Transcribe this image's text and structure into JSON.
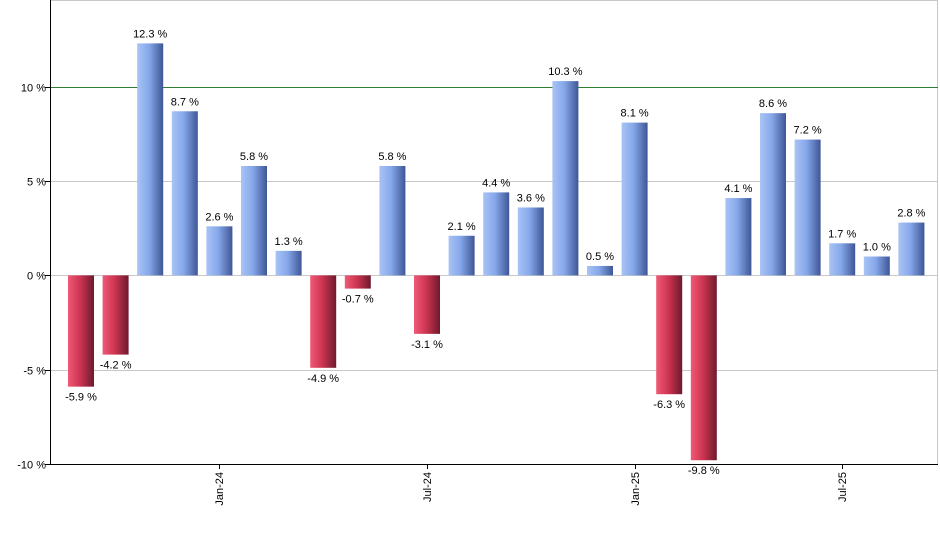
{
  "chart_data": {
    "type": "bar",
    "title": "",
    "xlabel": "",
    "ylabel": "",
    "ylim": [
      -10,
      14.6
    ],
    "yticks": [
      -10,
      -5,
      0,
      5,
      10
    ],
    "ytick_labels": [
      "-10 %",
      "-5 %",
      "0 %",
      "5 %",
      "10 %"
    ],
    "reference_line": {
      "value": 10,
      "color": "#2e7d32"
    },
    "grid": true,
    "xtick_labels": [
      {
        "label": "Jan-24",
        "index": 4
      },
      {
        "label": "Jul-24",
        "index": 10
      },
      {
        "label": "Jan-25",
        "index": 16
      },
      {
        "label": "Jul-25",
        "index": 22
      }
    ],
    "values": [
      -5.9,
      -4.2,
      12.3,
      8.7,
      2.6,
      5.8,
      1.3,
      -4.9,
      -0.7,
      5.8,
      -3.1,
      2.1,
      4.4,
      3.6,
      10.3,
      0.5,
      8.1,
      -6.3,
      -9.8,
      4.1,
      8.6,
      7.2,
      1.7,
      1.0,
      2.8
    ],
    "labels": [
      "-5.9 %",
      "-4.2 %",
      "12.3 %",
      "8.7 %",
      "2.6 %",
      "5.8 %",
      "1.3 %",
      "-4.9 %",
      "-0.7 %",
      "5.8 %",
      "-3.1 %",
      "2.1 %",
      "4.4 %",
      "3.6 %",
      "10.3 %",
      "0.5 %",
      "8.1 %",
      "-6.3 %",
      "-9.8 %",
      "4.1 %",
      "8.6 %",
      "7.2 %",
      "1.7 %",
      "1.0 %",
      "2.8 %"
    ],
    "colors": {
      "positive": "#7aa0e8",
      "negative": "#c8334f",
      "grid": "#c8c8c8",
      "axis": "#000000"
    }
  }
}
